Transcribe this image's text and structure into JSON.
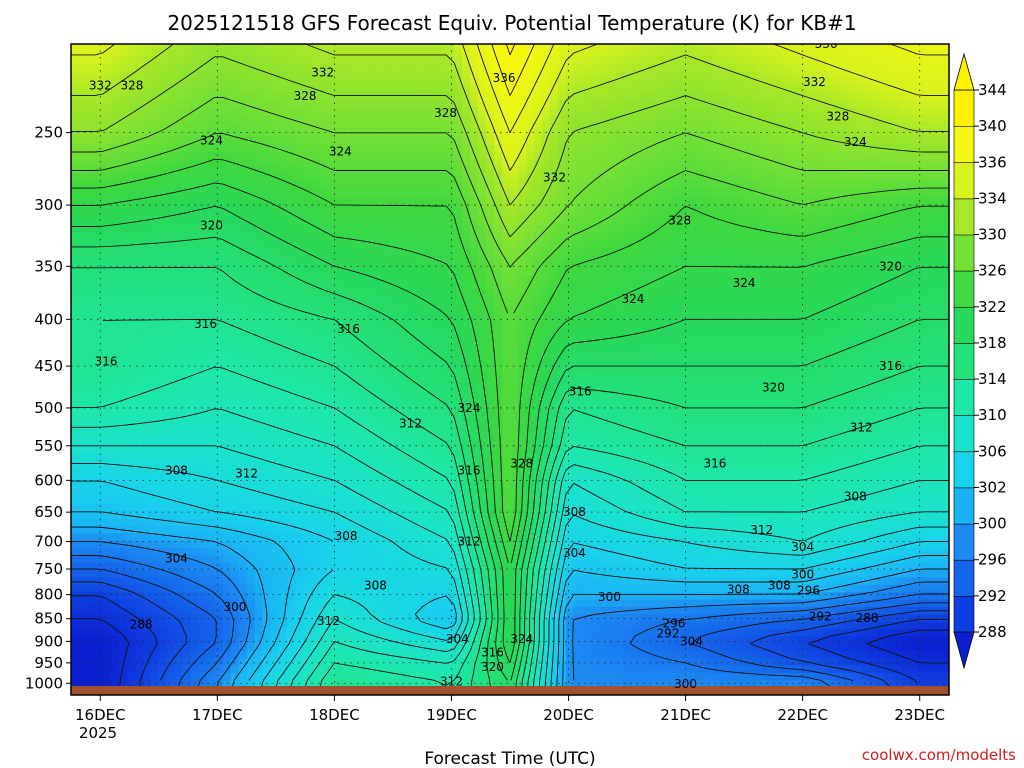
{
  "chart_data": {
    "type": "heatmap",
    "title": "2025121518 GFS Forecast Equiv. Potential Temperature (K) for KB#1",
    "xlabel": "Forecast Time (UTC)",
    "ylabel": "",
    "credit": "coolwx.com/modelts",
    "x_ticks": [
      "16DEC",
      "17DEC",
      "18DEC",
      "19DEC",
      "20DEC",
      "21DEC",
      "22DEC",
      "23DEC"
    ],
    "x_year": "2025",
    "y_ticks": [
      250,
      300,
      350,
      400,
      450,
      500,
      550,
      600,
      650,
      700,
      750,
      800,
      850,
      900,
      950,
      1000
    ],
    "y_unit": "hPa",
    "ylim": [
      1030,
      200
    ],
    "xlim_days": [
      15.75,
      23.25
    ],
    "colorbar": {
      "levels": [
        288,
        292,
        296,
        300,
        302,
        306,
        310,
        314,
        318,
        322,
        326,
        330,
        334,
        336,
        340,
        344
      ],
      "colors": [
        "#0a1fd0",
        "#0f3ee0",
        "#1565ea",
        "#1c8af2",
        "#1ab3f6",
        "#19d3ea",
        "#1ae3cc",
        "#1ee7a8",
        "#22e07a",
        "#28d85a",
        "#3ed83f",
        "#74e035",
        "#a8e828",
        "#d8f21c",
        "#f4f812",
        "#fff200"
      ]
    },
    "columns": [
      {
        "time": "16DEC 00Z",
        "day": 16.0,
        "values": [
          332,
          324,
          318,
          316,
          316,
          314,
          310,
          306,
          304,
          300,
          296,
          292,
          290,
          288,
          288,
          288
        ]
      },
      {
        "time": "17DEC 00Z",
        "day": 17.0,
        "values": [
          328,
          322,
          318,
          316,
          314,
          312,
          310,
          308,
          306,
          302,
          300,
          298,
          296,
          296,
          298,
          300
        ]
      },
      {
        "time": "18DEC 00Z",
        "day": 18.0,
        "values": [
          330,
          326,
          322,
          318,
          316,
          314,
          312,
          310,
          308,
          306,
          306,
          308,
          310,
          312,
          314,
          316
        ]
      },
      {
        "time": "19DEC 00Z",
        "day": 19.0,
        "values": [
          330,
          326,
          324,
          322,
          320,
          318,
          316,
          314,
          312,
          310,
          308,
          306,
          304,
          308,
          312,
          314
        ]
      },
      {
        "time": "19DEC 12Z",
        "day": 19.5,
        "values": [
          338,
          334,
          330,
          328,
          328,
          328,
          328,
          328,
          328,
          326,
          324,
          324,
          324,
          324,
          322,
          320
        ]
      },
      {
        "time": "20DEC 00Z",
        "day": 20.0,
        "values": [
          332,
          330,
          326,
          324,
          320,
          316,
          314,
          310,
          308,
          306,
          304,
          302,
          300,
          300,
          300,
          300
        ]
      },
      {
        "time": "21DEC 00Z",
        "day": 21.0,
        "values": [
          330,
          326,
          324,
          322,
          320,
          318,
          316,
          314,
          312,
          308,
          306,
          302,
          298,
          296,
          298,
          300
        ]
      },
      {
        "time": "22DEC 00Z",
        "day": 22.0,
        "values": [
          332,
          328,
          324,
          322,
          320,
          318,
          316,
          314,
          312,
          310,
          306,
          302,
          296,
          292,
          294,
          300
        ]
      },
      {
        "time": "23DEC 00Z",
        "day": 23.0,
        "values": [
          334,
          326,
          322,
          320,
          318,
          316,
          314,
          312,
          310,
          306,
          302,
          298,
          292,
          288,
          290,
          292
        ]
      }
    ],
    "contour_labels": [
      {
        "text": "332",
        "day": 16.0,
        "p": 222
      },
      {
        "text": "328",
        "day": 16.27,
        "p": 222
      },
      {
        "text": "332",
        "day": 17.9,
        "p": 215
      },
      {
        "text": "328",
        "day": 17.75,
        "p": 228
      },
      {
        "text": "336",
        "day": 19.45,
        "p": 218
      },
      {
        "text": "328",
        "day": 18.95,
        "p": 238
      },
      {
        "text": "336",
        "day": 22.2,
        "p": 200
      },
      {
        "text": "332",
        "day": 22.1,
        "p": 220
      },
      {
        "text": "328",
        "day": 22.3,
        "p": 240
      },
      {
        "text": "324",
        "day": 22.45,
        "p": 256
      },
      {
        "text": "324",
        "day": 16.95,
        "p": 255
      },
      {
        "text": "324",
        "day": 18.05,
        "p": 262
      },
      {
        "text": "332",
        "day": 19.88,
        "p": 280
      },
      {
        "text": "328",
        "day": 20.95,
        "p": 312
      },
      {
        "text": "320",
        "day": 16.95,
        "p": 316
      },
      {
        "text": "320",
        "day": 22.75,
        "p": 350
      },
      {
        "text": "324",
        "day": 21.5,
        "p": 365
      },
      {
        "text": "324",
        "day": 20.55,
        "p": 380
      },
      {
        "text": "316",
        "day": 16.9,
        "p": 405
      },
      {
        "text": "316",
        "day": 18.12,
        "p": 410
      },
      {
        "text": "316",
        "day": 16.05,
        "p": 445
      },
      {
        "text": "316",
        "day": 22.75,
        "p": 450
      },
      {
        "text": "320",
        "day": 21.75,
        "p": 475
      },
      {
        "text": "316",
        "day": 20.1,
        "p": 480
      },
      {
        "text": "324",
        "day": 19.15,
        "p": 500
      },
      {
        "text": "312",
        "day": 18.65,
        "p": 520
      },
      {
        "text": "312",
        "day": 22.5,
        "p": 525
      },
      {
        "text": "316",
        "day": 21.25,
        "p": 575
      },
      {
        "text": "328",
        "day": 19.6,
        "p": 575
      },
      {
        "text": "316",
        "day": 19.15,
        "p": 585
      },
      {
        "text": "308",
        "day": 16.65,
        "p": 585
      },
      {
        "text": "312",
        "day": 17.25,
        "p": 590
      },
      {
        "text": "308",
        "day": 22.45,
        "p": 625
      },
      {
        "text": "308",
        "day": 20.05,
        "p": 650
      },
      {
        "text": "312",
        "day": 21.65,
        "p": 680
      },
      {
        "text": "308",
        "day": 18.1,
        "p": 690
      },
      {
        "text": "312",
        "day": 19.15,
        "p": 700
      },
      {
        "text": "304",
        "day": 22.0,
        "p": 710
      },
      {
        "text": "304",
        "day": 16.65,
        "p": 730
      },
      {
        "text": "304",
        "day": 20.05,
        "p": 720
      },
      {
        "text": "300",
        "day": 22.0,
        "p": 760
      },
      {
        "text": "308",
        "day": 18.35,
        "p": 782
      },
      {
        "text": "308",
        "day": 21.45,
        "p": 790
      },
      {
        "text": "308",
        "day": 21.8,
        "p": 782
      },
      {
        "text": "296",
        "day": 22.05,
        "p": 792
      },
      {
        "text": "300",
        "day": 20.35,
        "p": 805
      },
      {
        "text": "300",
        "day": 17.15,
        "p": 825
      },
      {
        "text": "292",
        "day": 22.15,
        "p": 845
      },
      {
        "text": "288",
        "day": 22.55,
        "p": 848
      },
      {
        "text": "296",
        "day": 20.9,
        "p": 860
      },
      {
        "text": "312",
        "day": 17.95,
        "p": 855
      },
      {
        "text": "288",
        "day": 16.35,
        "p": 862
      },
      {
        "text": "292",
        "day": 20.85,
        "p": 882
      },
      {
        "text": "304",
        "day": 21.05,
        "p": 900
      },
      {
        "text": "304",
        "day": 19.05,
        "p": 895
      },
      {
        "text": "324",
        "day": 19.6,
        "p": 895
      },
      {
        "text": "316",
        "day": 19.35,
        "p": 925
      },
      {
        "text": "320",
        "day": 19.35,
        "p": 960
      },
      {
        "text": "312",
        "day": 19.0,
        "p": 995
      },
      {
        "text": "300",
        "day": 21.0,
        "p": 1002
      }
    ]
  }
}
